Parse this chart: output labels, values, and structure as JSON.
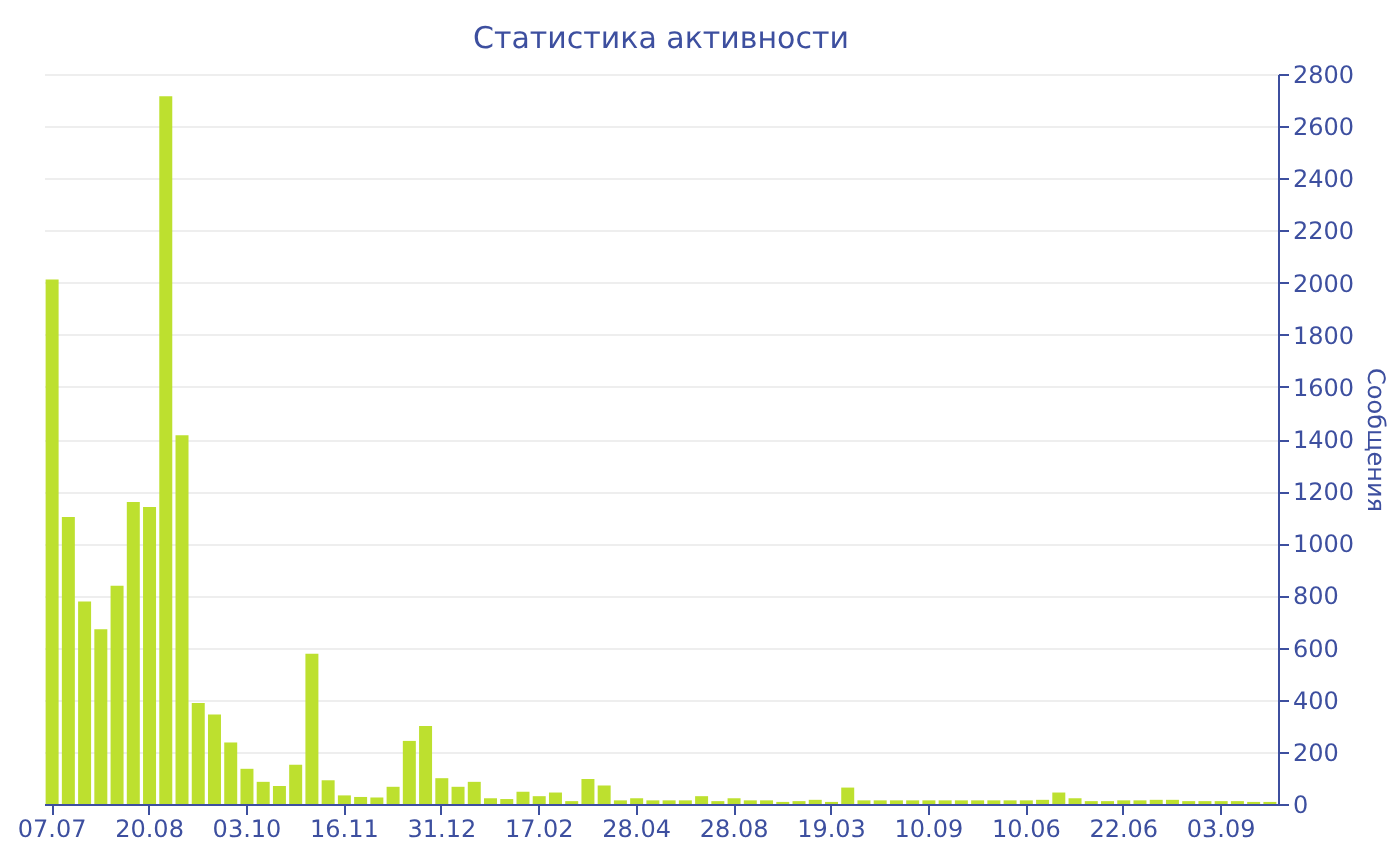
{
  "chart_data": {
    "type": "bar",
    "title": "Статистика активности",
    "ylabel": "Сообщения",
    "color": "#bde02f",
    "categories": [
      "07.07",
      null,
      null,
      null,
      null,
      null,
      "20.08",
      null,
      null,
      null,
      null,
      null,
      "03.10",
      null,
      null,
      null,
      null,
      null,
      "16.11",
      null,
      null,
      null,
      null,
      null,
      "31.12",
      null,
      null,
      null,
      null,
      null,
      "17.02",
      null,
      null,
      null,
      null,
      null,
      "28.04",
      null,
      null,
      null,
      null,
      null,
      "28.08",
      null,
      null,
      null,
      null,
      null,
      "19.03",
      null,
      null,
      null,
      null,
      null,
      "10.09",
      null,
      null,
      null,
      null,
      null,
      "10.06",
      null,
      null,
      null,
      null,
      null,
      "22.06",
      null,
      null,
      null,
      null,
      null,
      "03.09",
      null,
      null,
      null
    ],
    "values": [
      2012,
      1101,
      777,
      670,
      837,
      1158,
      1139,
      2715,
      1414,
      387,
      343,
      236,
      135,
      85,
      69,
      151,
      576,
      91,
      33,
      27,
      25,
      66,
      242,
      299,
      99,
      66,
      85,
      22,
      19,
      47,
      30,
      44,
      11,
      96,
      71,
      14,
      22,
      14,
      14,
      14,
      30,
      11,
      22,
      14,
      14,
      8,
      11,
      16,
      8,
      63,
      14,
      14,
      14,
      14,
      14,
      14,
      14,
      14,
      14,
      14,
      14,
      16,
      44,
      22,
      11,
      11,
      14,
      14,
      16,
      16,
      11,
      11,
      11,
      11,
      8,
      8
    ],
    "ylim": [
      0,
      2800
    ],
    "yticks": [
      0,
      200,
      400,
      600,
      800,
      1000,
      1200,
      1400,
      1600,
      1800,
      2000,
      2200,
      2400,
      2600,
      2800
    ],
    "grid": "y"
  }
}
